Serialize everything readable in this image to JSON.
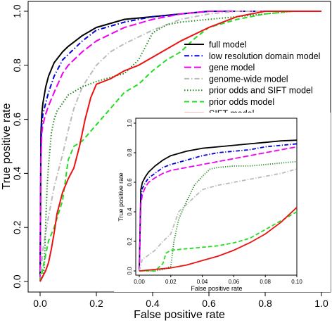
{
  "chart_data": [
    {
      "type": "line",
      "xlabel": "False positive rate",
      "ylabel": "True positive rate",
      "xlim": [
        0,
        1
      ],
      "ylim": [
        0,
        1
      ],
      "xticks": [
        "0.0",
        "0.2",
        "0.4",
        "0.6",
        "0.8",
        "1.0"
      ],
      "yticks": [
        "0.0",
        "0.2",
        "0.4",
        "0.6",
        "0.8",
        "1.0"
      ],
      "grid": false,
      "legend_position": "center-right",
      "series": [
        {
          "name": "full model",
          "color": "#000000",
          "dash": "solid",
          "x": [
            0,
            0.003,
            0.006,
            0.01,
            0.015,
            0.02,
            0.03,
            0.05,
            0.08,
            0.1,
            0.15,
            0.2,
            0.3,
            0.4,
            0.5,
            0.6,
            0.7,
            0.8,
            0.9,
            1.0
          ],
          "y": [
            0,
            0.55,
            0.62,
            0.66,
            0.69,
            0.72,
            0.76,
            0.81,
            0.85,
            0.87,
            0.91,
            0.94,
            0.97,
            0.98,
            0.99,
            1.0,
            1.0,
            1.0,
            1.0,
            1.0
          ]
        },
        {
          "name": "low resolution domain model",
          "color": "#0000dd",
          "dash": "dashdot",
          "x": [
            0,
            0.003,
            0.006,
            0.01,
            0.02,
            0.03,
            0.05,
            0.08,
            0.1,
            0.15,
            0.2,
            0.3,
            0.4,
            0.5,
            0.6,
            0.7,
            0.8,
            0.9,
            1.0
          ],
          "y": [
            0,
            0.5,
            0.58,
            0.62,
            0.66,
            0.7,
            0.76,
            0.82,
            0.84,
            0.89,
            0.93,
            0.96,
            0.98,
            0.99,
            1.0,
            1.0,
            1.0,
            1.0,
            1.0
          ]
        },
        {
          "name": "gene model",
          "color": "#ee00ee",
          "dash": "longdash",
          "x": [
            0,
            0.003,
            0.006,
            0.01,
            0.02,
            0.03,
            0.05,
            0.08,
            0.1,
            0.15,
            0.2,
            0.3,
            0.4,
            0.5,
            0.6,
            0.7,
            0.8,
            0.9,
            1.0
          ],
          "y": [
            0,
            0.45,
            0.55,
            0.58,
            0.62,
            0.65,
            0.7,
            0.77,
            0.8,
            0.85,
            0.89,
            0.94,
            0.97,
            0.99,
            1.0,
            1.0,
            1.0,
            1.0,
            1.0
          ]
        },
        {
          "name": "genome-wide model",
          "color": "#bbbbbb",
          "dash": "dashdot",
          "x": [
            0,
            0.01,
            0.02,
            0.03,
            0.05,
            0.08,
            0.1,
            0.12,
            0.15,
            0.2,
            0.25,
            0.3,
            0.4,
            0.5,
            0.6,
            0.7,
            0.8,
            0.9,
            1.0
          ],
          "y": [
            0,
            0.12,
            0.18,
            0.24,
            0.35,
            0.47,
            0.56,
            0.64,
            0.72,
            0.8,
            0.85,
            0.88,
            0.93,
            0.97,
            0.99,
            1.0,
            1.0,
            1.0,
            1.0
          ]
        },
        {
          "name": "prior odds and SIFT model",
          "color": "#228b22",
          "dash": "dotted",
          "x": [
            0,
            0.01,
            0.015,
            0.02,
            0.025,
            0.03,
            0.04,
            0.05,
            0.06,
            0.08,
            0.1,
            0.15,
            0.2,
            0.3,
            0.35,
            0.4,
            0.45,
            0.5,
            0.6,
            0.7,
            0.8,
            0.9,
            1.0
          ],
          "y": [
            0,
            0.02,
            0.05,
            0.22,
            0.35,
            0.43,
            0.55,
            0.6,
            0.63,
            0.66,
            0.69,
            0.72,
            0.74,
            0.77,
            0.82,
            0.92,
            0.95,
            0.96,
            0.97,
            0.98,
            0.99,
            1.0,
            1.0
          ]
        },
        {
          "name": "prior odds model",
          "color": "#22dd22",
          "dash": "dashed",
          "x": [
            0,
            0.01,
            0.02,
            0.03,
            0.05,
            0.08,
            0.1,
            0.12,
            0.15,
            0.2,
            0.25,
            0.3,
            0.35,
            0.4,
            0.45,
            0.5,
            0.55,
            0.6,
            0.7,
            0.8,
            0.9,
            1.0
          ],
          "y": [
            0,
            0.05,
            0.1,
            0.15,
            0.2,
            0.3,
            0.45,
            0.5,
            0.52,
            0.58,
            0.64,
            0.7,
            0.73,
            0.78,
            0.82,
            0.85,
            0.9,
            0.94,
            0.97,
            0.99,
            1.0,
            1.0
          ]
        },
        {
          "name": "SIFT model",
          "color": "#ee1111",
          "dash": "solid",
          "x": [
            0,
            0.01,
            0.02,
            0.03,
            0.04,
            0.05,
            0.06,
            0.08,
            0.1,
            0.12,
            0.14,
            0.16,
            0.18,
            0.2,
            0.25,
            0.3,
            0.35,
            0.4,
            0.45,
            0.5,
            0.6,
            0.7,
            0.8,
            0.9,
            1.0
          ],
          "y": [
            0,
            0.02,
            0.04,
            0.07,
            0.12,
            0.18,
            0.25,
            0.33,
            0.38,
            0.42,
            0.5,
            0.6,
            0.68,
            0.73,
            0.75,
            0.78,
            0.8,
            0.83,
            0.86,
            0.89,
            0.94,
            0.98,
            1.0,
            1.0,
            1.0
          ]
        }
      ]
    },
    {
      "type": "line",
      "xlabel": "False positive rate",
      "ylabel": "True positive rate",
      "xlim": [
        0,
        0.1
      ],
      "ylim": [
        0,
        1
      ],
      "xticks": [
        "0.00",
        "0.02",
        "0.04",
        "0.06",
        "0.08",
        "0.10"
      ],
      "yticks": [
        "0.0",
        "0.2",
        "0.4",
        "0.6",
        "0.8",
        "1.0"
      ],
      "grid": false,
      "series": [
        {
          "name": "full model",
          "color": "#000000",
          "dash": "solid",
          "x": [
            0,
            0.001,
            0.002,
            0.004,
            0.006,
            0.008,
            0.01,
            0.015,
            0.02,
            0.03,
            0.04,
            0.05,
            0.06,
            0.07,
            0.08,
            0.09,
            0.1
          ],
          "y": [
            0,
            0.55,
            0.6,
            0.64,
            0.67,
            0.69,
            0.71,
            0.75,
            0.78,
            0.81,
            0.83,
            0.84,
            0.85,
            0.86,
            0.87,
            0.88,
            0.885
          ]
        },
        {
          "name": "low resolution domain model",
          "color": "#0000dd",
          "dash": "dashdot",
          "x": [
            0,
            0.001,
            0.002,
            0.004,
            0.006,
            0.01,
            0.015,
            0.02,
            0.03,
            0.04,
            0.05,
            0.06,
            0.07,
            0.08,
            0.09,
            0.1
          ],
          "y": [
            0,
            0.5,
            0.56,
            0.6,
            0.63,
            0.66,
            0.7,
            0.72,
            0.75,
            0.78,
            0.8,
            0.81,
            0.82,
            0.84,
            0.85,
            0.86
          ]
        },
        {
          "name": "gene model",
          "color": "#ee00ee",
          "dash": "longdash",
          "x": [
            0,
            0.001,
            0.002,
            0.004,
            0.006,
            0.01,
            0.015,
            0.02,
            0.03,
            0.04,
            0.05,
            0.06,
            0.07,
            0.08,
            0.09,
            0.1
          ],
          "y": [
            0,
            0.45,
            0.52,
            0.57,
            0.6,
            0.63,
            0.66,
            0.68,
            0.7,
            0.72,
            0.74,
            0.76,
            0.78,
            0.8,
            0.82,
            0.84
          ]
        },
        {
          "name": "genome-wide model",
          "color": "#bbbbbb",
          "dash": "dashdot",
          "x": [
            0,
            0.002,
            0.005,
            0.01,
            0.015,
            0.02,
            0.025,
            0.03,
            0.035,
            0.04,
            0.05,
            0.06,
            0.07,
            0.08,
            0.09,
            0.1
          ],
          "y": [
            0,
            0.08,
            0.1,
            0.14,
            0.2,
            0.25,
            0.4,
            0.45,
            0.5,
            0.55,
            0.58,
            0.6,
            0.62,
            0.64,
            0.66,
            0.69
          ]
        },
        {
          "name": "prior odds and SIFT model",
          "color": "#228b22",
          "dash": "dotted",
          "x": [
            0,
            0.01,
            0.015,
            0.02,
            0.022,
            0.025,
            0.03,
            0.035,
            0.04,
            0.045,
            0.05,
            0.06,
            0.07,
            0.08,
            0.09,
            0.1
          ],
          "y": [
            0,
            0.0,
            0.01,
            0.03,
            0.2,
            0.35,
            0.47,
            0.58,
            0.64,
            0.69,
            0.7,
            0.71,
            0.71,
            0.72,
            0.73,
            0.74
          ]
        },
        {
          "name": "prior odds model",
          "color": "#22dd22",
          "dash": "dashed",
          "x": [
            0,
            0.01,
            0.015,
            0.017,
            0.02,
            0.03,
            0.04,
            0.05,
            0.06,
            0.07,
            0.08,
            0.09,
            0.1
          ],
          "y": [
            0,
            0.0,
            0.05,
            0.12,
            0.14,
            0.15,
            0.16,
            0.17,
            0.19,
            0.22,
            0.28,
            0.34,
            0.4
          ]
        },
        {
          "name": "SIFT model",
          "color": "#ee1111",
          "dash": "solid",
          "x": [
            0,
            0.01,
            0.02,
            0.03,
            0.04,
            0.05,
            0.06,
            0.07,
            0.08,
            0.09,
            0.1
          ],
          "y": [
            0,
            0.01,
            0.02,
            0.04,
            0.07,
            0.1,
            0.14,
            0.19,
            0.25,
            0.33,
            0.43
          ]
        }
      ]
    }
  ]
}
